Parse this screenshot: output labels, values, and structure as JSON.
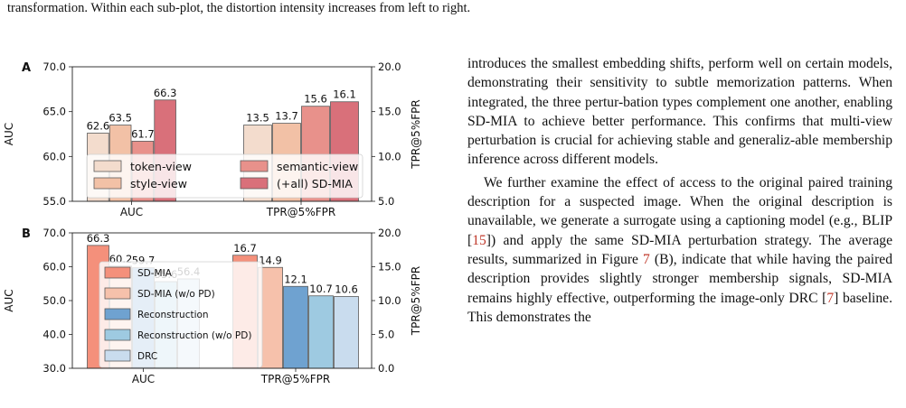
{
  "caption_fragment": "transformation. Within each sub-plot, the distortion intensity increases from left to right.",
  "figure": {
    "panel_a_label": "A",
    "panel_b_label": "B"
  },
  "chart_data": [
    {
      "type": "bar",
      "panel": "A",
      "categories": [
        "AUC",
        "TPR@5%FPR"
      ],
      "series": [
        {
          "name": "token-view",
          "color": "#f3dccd",
          "values": [
            62.6,
            13.5
          ]
        },
        {
          "name": "style-view",
          "color": "#f2c1a6",
          "values": [
            63.5,
            13.7
          ]
        },
        {
          "name": "semantic-view",
          "color": "#e8918b",
          "values": [
            61.7,
            15.6
          ]
        },
        {
          "name": "(+all) SD-MIA",
          "color": "#d9707a",
          "values": [
            66.3,
            16.1
          ]
        }
      ],
      "ylabel": "AUC",
      "ylabel_right": "TPR@5%FPR",
      "ylim": [
        55,
        70
      ],
      "ylim_right": [
        5,
        20
      ],
      "yticks": [
        "55.0",
        "60.0",
        "65.0",
        "70.0"
      ],
      "yticks_right": [
        "5.0",
        "10.0",
        "15.0",
        "20.0"
      ],
      "legend": "lower-center, two columns",
      "grid": false
    },
    {
      "type": "bar",
      "panel": "B",
      "categories": [
        "AUC",
        "TPR@5%FPR"
      ],
      "series": [
        {
          "name": "SD-MIA",
          "color": "#f4907b",
          "values": [
            66.3,
            16.7
          ]
        },
        {
          "name": "SD-MIA (w/o PD)",
          "color": "#f6c1ab",
          "values": [
            60.2,
            14.9
          ]
        },
        {
          "name": "Reconstruction",
          "color": "#6fa2d0",
          "values": [
            59.7,
            12.1
          ]
        },
        {
          "name": "Reconstruction (w/o PD)",
          "color": "#9ecae1",
          "values": [
            55.6,
            10.7
          ]
        },
        {
          "name": "DRC",
          "color": "#c9dcee",
          "values": [
            56.4,
            10.6
          ]
        }
      ],
      "ylabel": "AUC",
      "ylabel_right": "TPR@5%FPR",
      "ylim": [
        30,
        70
      ],
      "ylim_right": [
        0,
        20
      ],
      "yticks": [
        "30.0",
        "40.0",
        "50.0",
        "60.0",
        "70.0"
      ],
      "yticks_right": [
        "0.0",
        "5.0",
        "10.0",
        "15.0",
        "20.0"
      ],
      "legend": "lower-left, one column",
      "grid": false
    }
  ],
  "body_text": {
    "p1": "introduces the smallest embedding shifts, perform well on certain models, demonstrating their sensitivity to subtle memorization patterns. When integrated, the three pertur-bation types complement one another, enabling SD-MIA to achieve better performance. This confirms that multi-view perturbation is crucial for achieving stable and generaliz-able membership inference across different models.",
    "p2_a": "We further examine the effect of access to the original paired training description for a suspected image. When the original description is unavailable, we generate a surrogate using a captioning model (e.g., BLIP [",
    "cite_15": "15",
    "p2_b": "]) and apply the same SD-MIA perturbation strategy. The average results, summarized in Figure ",
    "cite_fig7": "7",
    "p2_c": " (B), indicate that while having the paired description provides slightly stronger membership signals, SD-MIA remains highly effective, outperforming the image-only DRC [",
    "cite_7": "7",
    "p2_d": "] baseline. This demonstrates the"
  }
}
